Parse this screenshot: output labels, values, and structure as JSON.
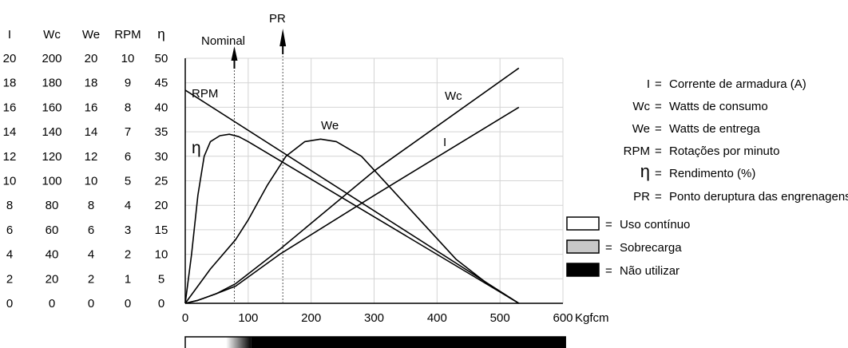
{
  "chart_data": {
    "type": "line",
    "title": "",
    "xlabel": "Kgfcm",
    "xlim": [
      0,
      600
    ],
    "x_ticks": [
      "0",
      "100",
      "200",
      "300",
      "400",
      "500",
      "600"
    ],
    "grid": true,
    "left_scales": [
      {
        "header": "I",
        "ticks": [
          "20",
          "18",
          "16",
          "14",
          "12",
          "10",
          "8",
          "6",
          "4",
          "2",
          "0"
        ]
      },
      {
        "header": "Wc",
        "ticks": [
          "200",
          "180",
          "160",
          "140",
          "120",
          "100",
          "80",
          "60",
          "40",
          "20",
          "0"
        ]
      },
      {
        "header": "We",
        "ticks": [
          "20",
          "18",
          "16",
          "14",
          "12",
          "10",
          "8",
          "6",
          "4",
          "2",
          "0"
        ]
      },
      {
        "header": "RPM",
        "ticks": [
          "10",
          "9",
          "8",
          "7",
          "6",
          "5",
          "4",
          "3",
          "2",
          "1",
          "0"
        ]
      },
      {
        "header": "η",
        "ticks": [
          "50",
          "45",
          "40",
          "35",
          "30",
          "25",
          "20",
          "15",
          "10",
          "5",
          "0"
        ]
      }
    ],
    "y_eta_lim": [
      0,
      50
    ],
    "series": [
      {
        "name": "RPM",
        "label": "RPM",
        "x": [
          0,
          530
        ],
        "y_eta": [
          43.5,
          0
        ]
      },
      {
        "name": "Wc",
        "label": "Wc",
        "x": [
          0,
          20,
          50,
          80,
          150,
          300,
          530
        ],
        "y_eta": [
          0,
          0.6,
          2,
          4,
          11,
          27,
          48
        ]
      },
      {
        "name": "I",
        "label": "I",
        "x": [
          0,
          20,
          50,
          80,
          150,
          300,
          530
        ],
        "y_eta": [
          0,
          0.6,
          2,
          3.5,
          10,
          22,
          40
        ]
      },
      {
        "name": "We",
        "label": "We",
        "x": [
          0,
          40,
          80,
          100,
          130,
          160,
          190,
          215,
          240,
          280,
          330,
          380,
          430,
          480,
          530
        ],
        "y_eta": [
          0,
          7,
          13,
          17,
          24,
          30,
          33,
          33.5,
          33,
          30,
          23,
          16,
          9,
          4,
          0
        ]
      },
      {
        "name": "η",
        "label": "η",
        "x": [
          0,
          10,
          20,
          30,
          40,
          55,
          70,
          85,
          100,
          530
        ],
        "y_eta": [
          0,
          10,
          22,
          30,
          33,
          34.2,
          34.5,
          34,
          33,
          0
        ]
      }
    ],
    "markers": [
      {
        "label": "Nominal",
        "x": 78
      },
      {
        "label": "PR",
        "x": 155
      }
    ],
    "usage_bar": {
      "continuous_until": 65,
      "gradient_until": 105,
      "end": 605
    }
  },
  "legend": {
    "definitions": [
      {
        "key": "I",
        "text": "Corrente de armadura (A)"
      },
      {
        "key": "Wc",
        "text": "Watts de consumo"
      },
      {
        "key": "We",
        "text": "Watts de entrega"
      },
      {
        "key": "RPM",
        "text": "Rotações por minuto"
      },
      {
        "key": "η",
        "text": "Rendimento (%)"
      },
      {
        "key": "PR",
        "text": "Ponto deruptura das engrenagens"
      }
    ],
    "swatches": [
      {
        "color": "#ffffff",
        "text": "Uso contínuo"
      },
      {
        "color": "#c8c8c8",
        "text": "Sobrecarga"
      },
      {
        "color": "#000000",
        "text": "Não utilizar"
      }
    ]
  }
}
